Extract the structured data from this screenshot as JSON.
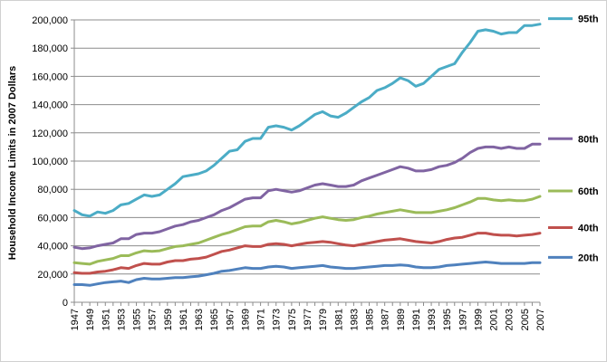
{
  "chart_data": {
    "type": "line",
    "title": "",
    "xlabel": "",
    "ylabel": "Household Income Limits in 2007 Dollars",
    "x": [
      1947,
      1948,
      1949,
      1950,
      1951,
      1952,
      1953,
      1954,
      1955,
      1956,
      1957,
      1958,
      1959,
      1960,
      1961,
      1962,
      1963,
      1964,
      1965,
      1966,
      1967,
      1968,
      1969,
      1970,
      1971,
      1972,
      1973,
      1974,
      1975,
      1976,
      1977,
      1978,
      1979,
      1980,
      1981,
      1982,
      1983,
      1984,
      1985,
      1986,
      1987,
      1988,
      1989,
      1990,
      1991,
      1992,
      1993,
      1994,
      1995,
      1996,
      1997,
      1998,
      1999,
      2000,
      2001,
      2002,
      2003,
      2004,
      2005,
      2006,
      2007
    ],
    "xticks": [
      1947,
      1949,
      1951,
      1953,
      1955,
      1957,
      1959,
      1961,
      1963,
      1965,
      1967,
      1969,
      1971,
      1973,
      1975,
      1977,
      1979,
      1981,
      1983,
      1985,
      1987,
      1989,
      1991,
      1993,
      1995,
      1997,
      1999,
      2001,
      2003,
      2005,
      2007
    ],
    "ylim": [
      0,
      200000
    ],
    "yticks": [
      0,
      20000,
      40000,
      60000,
      80000,
      100000,
      120000,
      140000,
      160000,
      180000,
      200000
    ],
    "ytick_labels": [
      "0",
      "20,000",
      "40,000",
      "60,000",
      "80,000",
      "100,000",
      "120,000",
      "140,000",
      "160,000",
      "180,000",
      "200,000"
    ],
    "grid": true,
    "legend_position": "right",
    "series": [
      {
        "name": "95th",
        "color": "#4bacc6",
        "values": [
          65000,
          62000,
          61000,
          64000,
          63000,
          65000,
          69000,
          70000,
          73000,
          76000,
          75000,
          76000,
          80000,
          84000,
          89000,
          90000,
          91000,
          93000,
          97000,
          102000,
          107000,
          108000,
          114000,
          116000,
          116000,
          124000,
          125000,
          124000,
          122000,
          125000,
          129000,
          133000,
          135000,
          132000,
          131000,
          134000,
          138000,
          142000,
          145000,
          150000,
          152000,
          155000,
          159000,
          157000,
          153000,
          155000,
          160000,
          165000,
          167000,
          169000,
          177000,
          184000,
          192000,
          193000,
          192000,
          190000,
          191000,
          191000,
          196000,
          196000,
          197000
        ]
      },
      {
        "name": "80th",
        "color": "#8064a2",
        "values": [
          39000,
          38000,
          38500,
          40000,
          41000,
          42000,
          45000,
          45000,
          48000,
          49000,
          49000,
          50000,
          52000,
          54000,
          55000,
          57000,
          58000,
          60000,
          62000,
          65000,
          67000,
          70000,
          73000,
          74000,
          74000,
          79000,
          80000,
          79000,
          78000,
          79000,
          81000,
          83000,
          84000,
          83000,
          82000,
          82000,
          83000,
          86000,
          88000,
          90000,
          92000,
          94000,
          96000,
          95000,
          93000,
          93000,
          94000,
          96000,
          97000,
          99000,
          102000,
          106000,
          109000,
          110000,
          110000,
          109000,
          110000,
          109000,
          109000,
          112000,
          112000
        ]
      },
      {
        "name": "60th",
        "color": "#9bbb59",
        "values": [
          28000,
          27500,
          27000,
          29000,
          30000,
          31000,
          33000,
          33000,
          35000,
          36500,
          36000,
          36500,
          38000,
          39500,
          40000,
          41000,
          42000,
          44000,
          46000,
          48000,
          49500,
          51500,
          53500,
          54000,
          54000,
          57000,
          58000,
          57000,
          55500,
          56500,
          58000,
          59500,
          60500,
          59500,
          58500,
          58000,
          58500,
          60000,
          61000,
          62500,
          63500,
          64500,
          65500,
          64500,
          63500,
          63500,
          63500,
          64500,
          65500,
          67000,
          69000,
          71000,
          73500,
          73500,
          72500,
          72000,
          72500,
          72000,
          72000,
          73000,
          75000
        ]
      },
      {
        "name": "40th",
        "color": "#c0504d",
        "values": [
          21000,
          20500,
          20500,
          21500,
          22000,
          23000,
          24500,
          24000,
          26000,
          27500,
          27000,
          27000,
          28500,
          29500,
          29500,
          30500,
          31000,
          32000,
          34000,
          36000,
          37000,
          38500,
          40000,
          39500,
          39500,
          41000,
          41500,
          41000,
          40000,
          41000,
          42000,
          42500,
          43000,
          42500,
          41500,
          40500,
          40000,
          41000,
          42000,
          43000,
          44000,
          44500,
          45000,
          44000,
          43000,
          42500,
          42000,
          43000,
          44500,
          45500,
          46000,
          47500,
          49000,
          49000,
          48000,
          47500,
          47500,
          47000,
          47500,
          48000,
          49000
        ]
      },
      {
        "name": "20th",
        "color": "#4f81bd",
        "values": [
          12500,
          12500,
          12000,
          13000,
          14000,
          14500,
          15000,
          14000,
          16000,
          17000,
          16500,
          16500,
          17000,
          17500,
          17500,
          18000,
          18500,
          19500,
          20500,
          22000,
          22500,
          23500,
          24500,
          24000,
          24000,
          25000,
          25500,
          25000,
          24000,
          24500,
          25000,
          25500,
          26000,
          25000,
          24500,
          24000,
          24000,
          24500,
          25000,
          25500,
          26000,
          26000,
          26500,
          26000,
          25000,
          24500,
          24500,
          25000,
          26000,
          26500,
          27000,
          27500,
          28000,
          28500,
          28000,
          27500,
          27500,
          27500,
          27500,
          28000,
          28000
        ]
      }
    ]
  }
}
